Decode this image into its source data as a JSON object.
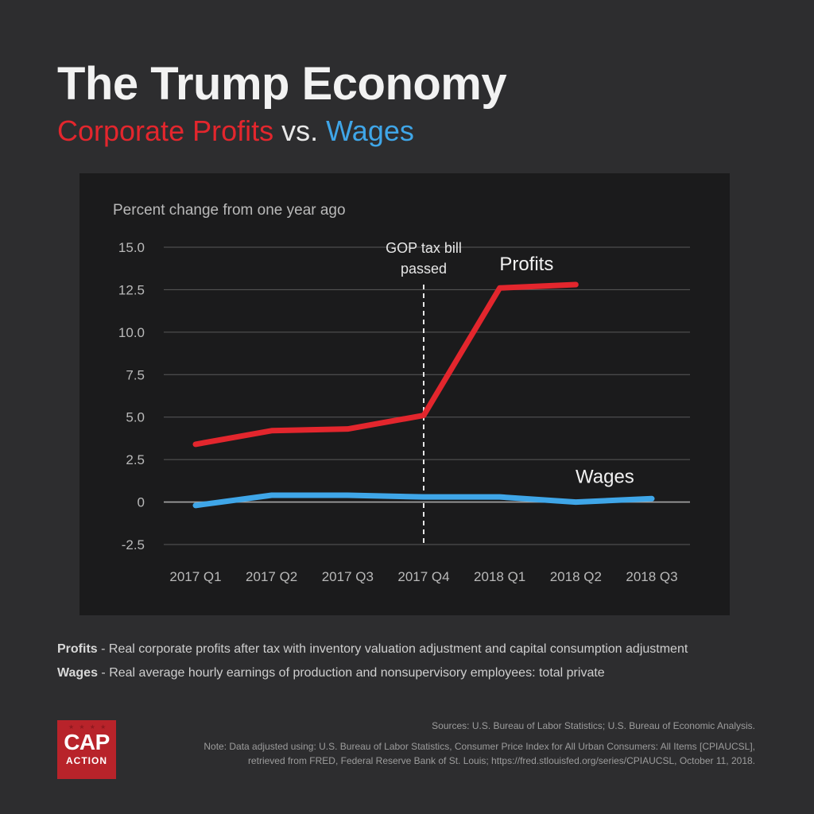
{
  "header": {
    "title": "The Trump Economy",
    "subtitle_profits": "Corporate Profits",
    "subtitle_vs": "vs.",
    "subtitle_wages": "Wages"
  },
  "colors": {
    "profits": "#e3262d",
    "wages": "#3fa6e8",
    "grid": "#5a5a5a",
    "text": "#b9b9b9"
  },
  "chart_data": {
    "type": "line",
    "ylabel": "Percent change from one year ago",
    "categories": [
      "2017 Q1",
      "2017 Q2",
      "2017 Q3",
      "2017 Q4",
      "2018 Q1",
      "2018 Q2",
      "2018 Q3"
    ],
    "yticks": [
      15.0,
      12.5,
      10.0,
      7.5,
      5.0,
      2.5,
      0,
      -2.5
    ],
    "ytick_labels": [
      "15.0",
      "12.5",
      "10.0",
      "7.5",
      "5.0",
      "2.5",
      "0",
      "-2.5"
    ],
    "ylim": [
      -2.5,
      15.0
    ],
    "series": [
      {
        "name": "Profits",
        "label": "Profits",
        "values": [
          3.4,
          4.2,
          4.3,
          5.1,
          12.6,
          12.8,
          null
        ]
      },
      {
        "name": "Wages",
        "label": "Wages",
        "values": [
          -0.2,
          0.4,
          0.4,
          0.3,
          0.3,
          0.0,
          0.2
        ]
      }
    ],
    "annotation": {
      "category": "2017 Q4",
      "line1": "GOP tax bill",
      "line2": "passed"
    }
  },
  "definitions": {
    "profits_term": "Profits",
    "profits_text": " - Real corporate profits after tax with inventory valuation adjustment and capital consumption adjustment",
    "wages_term": "Wages",
    "wages_text": " - Real average hourly earnings of production and nonsupervisory employees: total private"
  },
  "logo": {
    "line1": "CAP",
    "line2": "ACTION"
  },
  "sources": {
    "line1": "Sources: U.S. Bureau of Labor Statistics; U.S. Bureau of Economic Analysis.",
    "line2": "Note: Data adjusted using: U.S. Bureau of Labor Statistics, Consumer Price Index for All Urban Consumers: All Items [CPIAUCSL],",
    "line3": "retrieved from FRED, Federal Reserve Bank of St. Louis; https://fred.stlouisfed.org/series/CPIAUCSL, October 11, 2018."
  }
}
